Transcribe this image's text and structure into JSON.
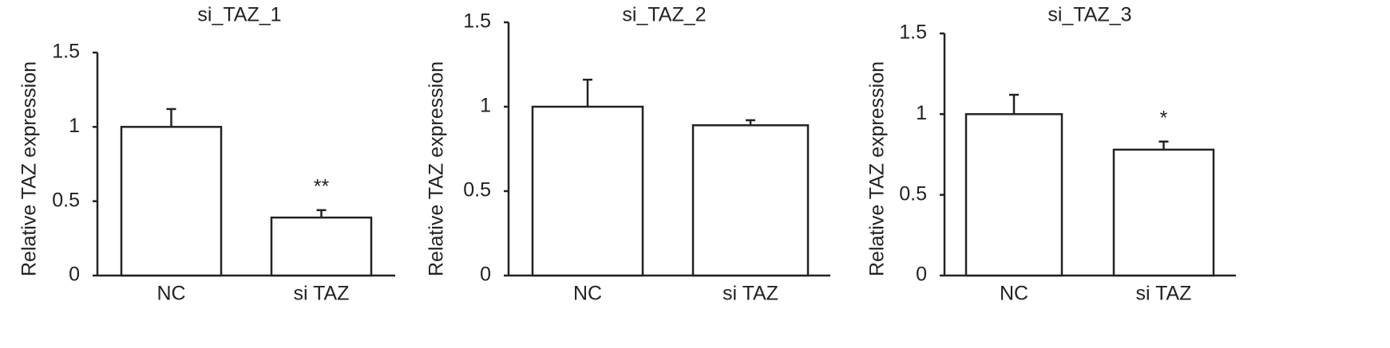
{
  "chart_data": [
    {
      "type": "bar",
      "title": "si_TAZ_1",
      "y_label": "Relative TAZ expression",
      "categories": [
        "NC",
        "si TAZ"
      ],
      "values": [
        1,
        0.39
      ],
      "errors": [
        0.12,
        0.05
      ],
      "annotations": [
        null,
        "**"
      ],
      "color": "#ffffff",
      "ylim": [
        0,
        1.5
      ],
      "yticks": [
        0,
        0.5,
        1,
        1.5
      ],
      "grid": false
    },
    {
      "type": "bar",
      "title": "si_TAZ_2",
      "y_label": "Relative TAZ expression",
      "categories": [
        "NC",
        "si TAZ"
      ],
      "values": [
        1,
        0.89
      ],
      "errors": [
        0.16,
        0.03
      ],
      "annotations": [
        null,
        null
      ],
      "color": "#ffffff",
      "ylim": [
        0,
        1.5
      ],
      "yticks": [
        0,
        0.5,
        1,
        1.5
      ],
      "grid": false
    },
    {
      "type": "bar",
      "title": "si_TAZ_3",
      "y_label": "Relative TAZ expression",
      "categories": [
        "NC",
        "si TAZ"
      ],
      "values": [
        1,
        0.78
      ],
      "errors": [
        0.12,
        0.05
      ],
      "annotations": [
        null,
        "*"
      ],
      "color": "#ffffff",
      "ylim": [
        0,
        1.5
      ],
      "yticks": [
        0,
        0.5,
        1,
        1.5
      ],
      "grid": false
    }
  ]
}
